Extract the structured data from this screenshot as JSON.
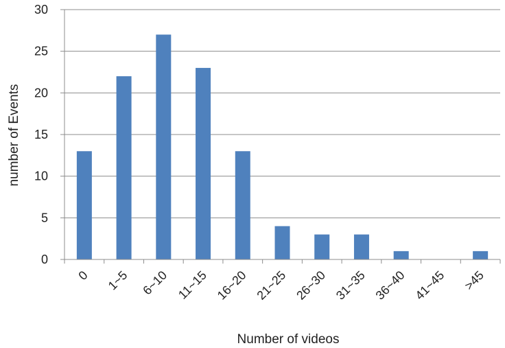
{
  "chart_data": {
    "type": "bar",
    "categories": [
      "0",
      "1~5",
      "6~10",
      "11~15",
      "16~20",
      "21~25",
      "26~30",
      "31~35",
      "36~40",
      "41~45",
      ">45"
    ],
    "series": [
      {
        "values": [
          13,
          22,
          27,
          23,
          13,
          4,
          3,
          3,
          1,
          0,
          1
        ]
      }
    ],
    "xlabel": "Number of  videos",
    "ylabel": "number of Events",
    "ylim": [
      0,
      30
    ],
    "yticks": [
      0,
      5,
      10,
      15,
      20,
      25,
      30
    ],
    "grid": "horizontal",
    "legend": "none",
    "colors": {
      "bar": "#4F81BD",
      "grid": "#8C8C8C",
      "axis": "#8C8C8C"
    }
  }
}
